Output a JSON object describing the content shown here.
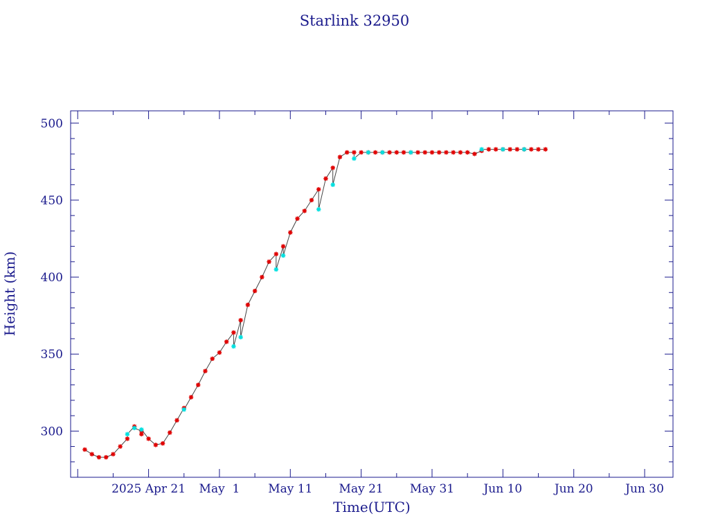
{
  "chart_data": {
    "type": "scatter",
    "title": "Starlink 32950",
    "xlabel": "Time(UTC)",
    "ylabel": "Height (km)",
    "x_axis_type": "date",
    "xlim": [
      "2025-04-10",
      "2025-07-04"
    ],
    "ylim": [
      270,
      508
    ],
    "x_ticks": [
      {
        "date": "2025-04-21",
        "label": "2025 Apr 21"
      },
      {
        "date": "2025-05-01",
        "label": "May  1"
      },
      {
        "date": "2025-05-11",
        "label": "May 11"
      },
      {
        "date": "2025-05-21",
        "label": "May 21"
      },
      {
        "date": "2025-05-31",
        "label": "May 31"
      },
      {
        "date": "2025-06-10",
        "label": "Jun 10"
      },
      {
        "date": "2025-06-20",
        "label": "Jun 20"
      },
      {
        "date": "2025-06-30",
        "label": "Jun 30"
      }
    ],
    "y_ticks": [
      300,
      350,
      400,
      450,
      500
    ],
    "grid": false,
    "colors": {
      "axis": "#1a1a8c",
      "text": "#1a1a8c",
      "line": "#444444",
      "marker_red": "#e00000",
      "marker_cyan": "#00e0e0"
    },
    "series": [
      {
        "marker": "asterisk",
        "color": "#e00000",
        "x": [
          "2025-04-12",
          "2025-04-13",
          "2025-04-14",
          "2025-04-15",
          "2025-04-16",
          "2025-04-17",
          "2025-04-18",
          "2025-04-19",
          "2025-04-20",
          "2025-04-20",
          "2025-04-21",
          "2025-04-22",
          "2025-04-23",
          "2025-04-24",
          "2025-04-25",
          "2025-04-26",
          "2025-04-27",
          "2025-04-28",
          "2025-04-29",
          "2025-04-30",
          "2025-05-01",
          "2025-05-02",
          "2025-05-03",
          "2025-05-04",
          "2025-05-05",
          "2025-05-06",
          "2025-05-07",
          "2025-05-08",
          "2025-05-09",
          "2025-05-10",
          "2025-05-11",
          "2025-05-12",
          "2025-05-13",
          "2025-05-14",
          "2025-05-15",
          "2025-05-16",
          "2025-05-17",
          "2025-05-18",
          "2025-05-19",
          "2025-05-20",
          "2025-05-21",
          "2025-05-22",
          "2025-05-23",
          "2025-05-24",
          "2025-05-25",
          "2025-05-26",
          "2025-05-27",
          "2025-05-28",
          "2025-05-29",
          "2025-05-30",
          "2025-05-31",
          "2025-06-01",
          "2025-06-02",
          "2025-06-03",
          "2025-06-04",
          "2025-06-05",
          "2025-06-06",
          "2025-06-07",
          "2025-06-08",
          "2025-06-09",
          "2025-06-10",
          "2025-06-11",
          "2025-06-12",
          "2025-06-13",
          "2025-06-14",
          "2025-06-15",
          "2025-06-16"
        ],
        "y": [
          288,
          285,
          283,
          283,
          285,
          290,
          295,
          303,
          300,
          298,
          295,
          291,
          292,
          299,
          307,
          315,
          322,
          330,
          339,
          347,
          351,
          358,
          364,
          372,
          382,
          391,
          400,
          410,
          415,
          420,
          429,
          438,
          443,
          450,
          457,
          464,
          471,
          478,
          481,
          481,
          481,
          481,
          481,
          481,
          481,
          481,
          481,
          481,
          481,
          481,
          481,
          481,
          481,
          481,
          481,
          481,
          480,
          482,
          483,
          483,
          483,
          483,
          483,
          483,
          483,
          483,
          483
        ]
      },
      {
        "marker": "asterisk",
        "color": "#00e0e0",
        "x": [
          "2025-04-18",
          "2025-04-19",
          "2025-04-20",
          "2025-04-26",
          "2025-05-03",
          "2025-05-04",
          "2025-05-09",
          "2025-05-10",
          "2025-05-15",
          "2025-05-17",
          "2025-05-20",
          "2025-05-22",
          "2025-05-24",
          "2025-05-28",
          "2025-06-07",
          "2025-06-10",
          "2025-06-13"
        ],
        "y": [
          298,
          302,
          301,
          314,
          355,
          361,
          405,
          414,
          444,
          460,
          477,
          481,
          481,
          481,
          483,
          483,
          483
        ]
      }
    ]
  }
}
